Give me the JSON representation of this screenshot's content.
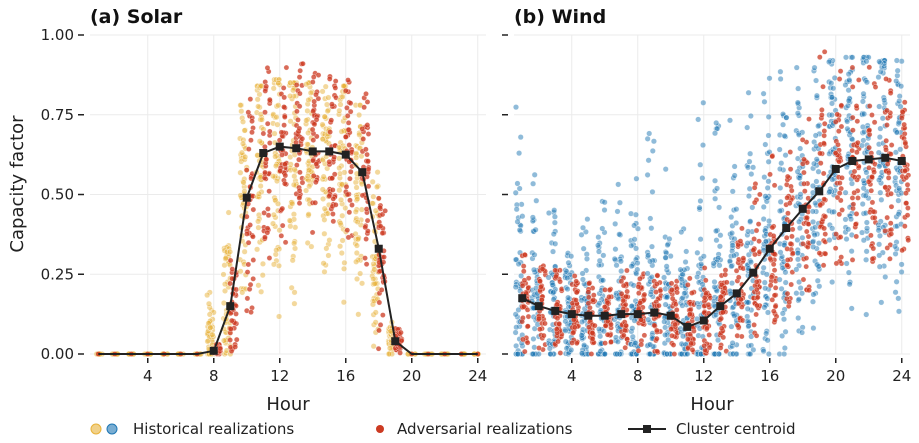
{
  "chart_data": [
    {
      "type": "scatter",
      "title": "(a) Solar",
      "xlabel": "Hour",
      "ylabel": "Capacity factor",
      "xlim": [
        0.5,
        24.5
      ],
      "ylim": [
        0,
        1
      ],
      "xticks": [
        4,
        8,
        12,
        16,
        20,
        24
      ],
      "xtick_labels": [
        "4",
        "8",
        "12",
        "16",
        "20",
        "24"
      ],
      "yticks": [
        0,
        0.25,
        0.5,
        0.75,
        1
      ],
      "ytick_labels": [
        "0.00",
        "0.25",
        "0.50",
        "0.75",
        "1.00"
      ],
      "grid": true,
      "historical_color": "#e8b23a",
      "adversarial_color": "#cc3a22",
      "centroid_color": "#222222",
      "hours": [
        1,
        2,
        3,
        4,
        5,
        6,
        7,
        8,
        9,
        10,
        11,
        12,
        13,
        14,
        15,
        16,
        17,
        18,
        19,
        20,
        21,
        22,
        23,
        24
      ],
      "centroid": [
        0,
        0,
        0,
        0,
        0,
        0,
        0,
        0.01,
        0.15,
        0.49,
        0.63,
        0.65,
        0.645,
        0.635,
        0.635,
        0.625,
        0.57,
        0.33,
        0.04,
        0,
        0,
        0,
        0,
        0
      ],
      "historical_range_min": [
        0,
        0,
        0,
        0,
        0,
        0,
        0,
        0,
        0,
        0.08,
        0.08,
        0.1,
        0.15,
        0.18,
        0.15,
        0.12,
        0.08,
        0,
        0,
        0,
        0,
        0,
        0,
        0
      ],
      "historical_range_max": [
        0,
        0,
        0,
        0,
        0,
        0,
        0,
        0.24,
        0.5,
        0.78,
        0.84,
        0.86,
        0.85,
        0.85,
        0.84,
        0.84,
        0.78,
        0.57,
        0.1,
        0,
        0,
        0,
        0,
        0
      ],
      "adversarial_range_min": [
        0,
        0,
        0,
        0,
        0,
        0,
        0,
        0,
        0,
        0.12,
        0.3,
        0.3,
        0.28,
        0.3,
        0.28,
        0.3,
        0.28,
        0,
        0,
        0,
        0,
        0,
        0,
        0
      ],
      "adversarial_range_max": [
        0,
        0,
        0,
        0,
        0,
        0,
        0,
        0.03,
        0.32,
        0.8,
        0.9,
        0.92,
        0.91,
        0.88,
        0.87,
        0.88,
        0.82,
        0.5,
        0.08,
        0,
        0,
        0,
        0,
        0
      ]
    },
    {
      "type": "scatter",
      "title": "(b) Wind",
      "xlabel": "Hour",
      "xlim": [
        0.5,
        24.5
      ],
      "ylim": [
        0,
        1
      ],
      "xticks": [
        4,
        8,
        12,
        16,
        20,
        24
      ],
      "xtick_labels": [
        "4",
        "8",
        "12",
        "16",
        "20",
        "24"
      ],
      "yticks": [
        0,
        0.25,
        0.5,
        0.75,
        1
      ],
      "grid": true,
      "historical_color": "#1f77b4",
      "adversarial_color": "#cc3a22",
      "centroid_color": "#222222",
      "hours": [
        1,
        2,
        3,
        4,
        5,
        6,
        7,
        8,
        9,
        10,
        11,
        12,
        13,
        14,
        15,
        16,
        17,
        18,
        19,
        20,
        21,
        22,
        23,
        24
      ],
      "centroid": [
        0.175,
        0.15,
        0.135,
        0.125,
        0.12,
        0.12,
        0.125,
        0.125,
        0.13,
        0.12,
        0.085,
        0.105,
        0.15,
        0.19,
        0.255,
        0.33,
        0.395,
        0.455,
        0.51,
        0.58,
        0.605,
        0.61,
        0.615,
        0.605
      ],
      "historical_range_min": [
        0,
        0,
        0,
        0,
        0,
        0,
        0,
        0,
        0,
        0,
        0,
        0,
        0,
        0,
        0,
        0,
        0,
        0.05,
        0.08,
        0.1,
        0.12,
        0.12,
        0.12,
        0.12
      ],
      "historical_range_max": [
        0.9,
        0.62,
        0.5,
        0.45,
        0.45,
        0.5,
        0.55,
        0.58,
        0.72,
        0.6,
        0.55,
        0.8,
        0.74,
        0.8,
        0.86,
        0.89,
        0.9,
        0.9,
        0.91,
        0.92,
        0.93,
        0.93,
        0.92,
        0.92
      ],
      "adversarial_range_min": [
        0,
        0,
        0,
        0,
        0,
        0,
        0,
        0,
        0,
        0,
        0,
        0,
        0,
        0.02,
        0.05,
        0.1,
        0.15,
        0.2,
        0.25,
        0.28,
        0.28,
        0.25,
        0.25,
        0.25
      ],
      "adversarial_range_max": [
        0.33,
        0.3,
        0.28,
        0.27,
        0.26,
        0.26,
        0.27,
        0.28,
        0.3,
        0.28,
        0.24,
        0.27,
        0.33,
        0.42,
        0.55,
        0.65,
        0.72,
        0.8,
        0.96,
        0.9,
        0.9,
        0.9,
        0.89,
        0.86
      ]
    }
  ],
  "legend": {
    "items": [
      {
        "label": "Historical realizations",
        "marker": "dual-dot",
        "colors": [
          "#e8b23a",
          "#1f77b4"
        ]
      },
      {
        "label": "Adversarial realizations",
        "marker": "dot",
        "colors": [
          "#cc3a22"
        ]
      },
      {
        "label": "Cluster centroid",
        "marker": "line-square",
        "colors": [
          "#222222"
        ]
      }
    ]
  }
}
